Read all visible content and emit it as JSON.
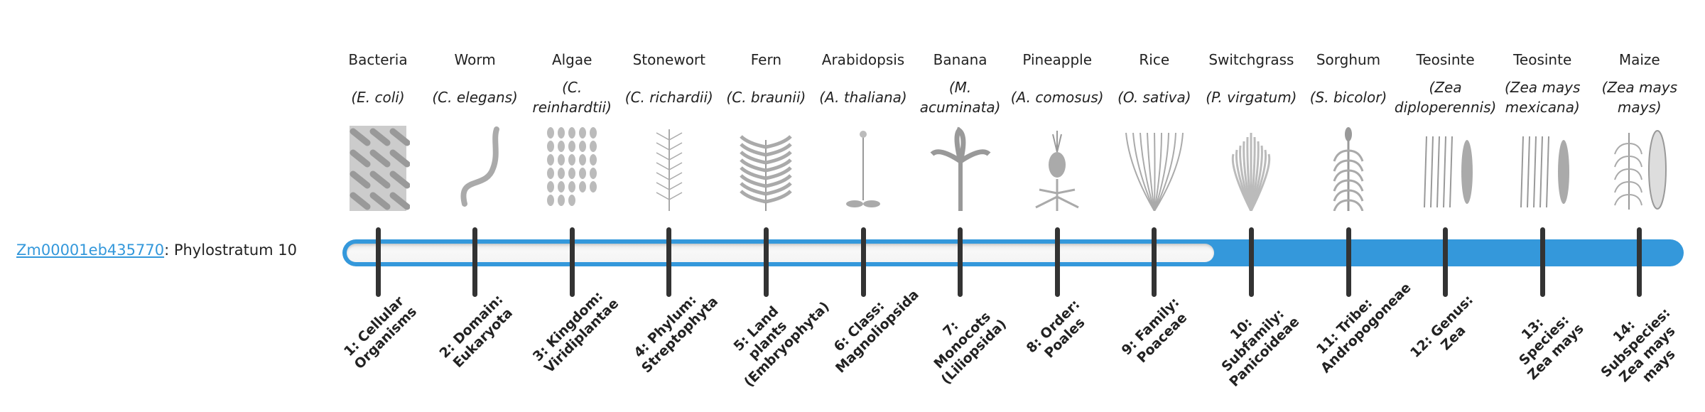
{
  "gene": {
    "id": "Zm00001eb435770",
    "separator": ": ",
    "text": "Phylostratum 10",
    "phylostratum": 10
  },
  "colors": {
    "accent": "#3498db",
    "tick": "#333333",
    "track": "#f4f4f4"
  },
  "organisms": [
    {
      "common": "Bacteria",
      "species": "(E. coli)",
      "icon": "bacteria-icon"
    },
    {
      "common": "Worm",
      "species": "(C. elegans)",
      "icon": "worm-icon"
    },
    {
      "common": "Algae",
      "species": "(C. reinhardtii)",
      "icon": "algae-icon"
    },
    {
      "common": "Stonewort",
      "species": "(C. richardii)",
      "icon": "stonewort-icon"
    },
    {
      "common": "Fern",
      "species": "(C. braunii)",
      "icon": "fern-icon"
    },
    {
      "common": "Arabidopsis",
      "species": "(A. thaliana)",
      "icon": "arabidopsis-icon"
    },
    {
      "common": "Banana",
      "species": "(M. acuminata)",
      "icon": "banana-icon"
    },
    {
      "common": "Pineapple",
      "species": "(A. comosus)",
      "icon": "pineapple-icon"
    },
    {
      "common": "Rice",
      "species": "(O. sativa)",
      "icon": "rice-icon"
    },
    {
      "common": "Switchgrass",
      "species": "(P. virgatum)",
      "icon": "switchgrass-icon"
    },
    {
      "common": "Sorghum",
      "species": "(S. bicolor)",
      "icon": "sorghum-icon"
    },
    {
      "common": "Teosinte",
      "species": "(Zea diploperennis)",
      "icon": "teosinte-icon"
    },
    {
      "common": "Teosinte",
      "species": "(Zea mays mexicana)",
      "icon": "teosinte-icon"
    },
    {
      "common": "Maize",
      "species": "(Zea mays mays)",
      "icon": "maize-icon"
    }
  ],
  "ranks": [
    "1: Cellular Organisms",
    "2: Domain: Eukaryota",
    "3: Kingdom: Viridiplantae",
    "4: Phylum: Streptophyta",
    "5: Land plants (Embryophyta)",
    "6: Class: Magnoliopsida",
    "7: Monocots (Liliopsida)",
    "8: Order: Poales",
    "9: Family: Poaceae",
    "10: Subfamily: Panicoideae",
    "11: Tribe: Andropogoneae",
    "12: Genus: Zea",
    "13: Species: Zea mays",
    "14: Subspecies: Zea mays mays"
  ]
}
